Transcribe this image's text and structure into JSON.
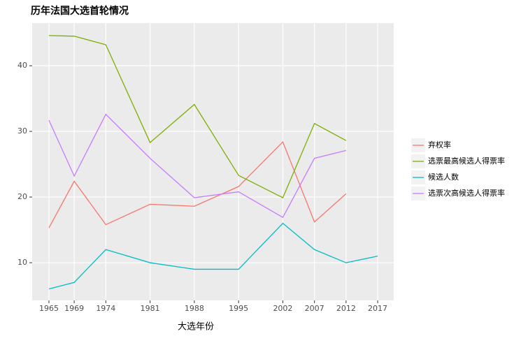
{
  "chart_data": {
    "type": "line",
    "title": "历年法国大选首轮情况",
    "x_label": "大选年份",
    "x": [
      1965,
      1969,
      1974,
      1981,
      1988,
      1995,
      2002,
      2007,
      2012,
      2017
    ],
    "series": [
      {
        "name": "弃权率",
        "color": "#F8766D",
        "values": [
          15.3,
          22.4,
          15.8,
          18.9,
          18.6,
          21.6,
          28.4,
          16.2,
          20.5,
          null
        ]
      },
      {
        "name": "选票最高候选人得票率",
        "color": "#7CAE00",
        "values": [
          44.6,
          44.5,
          43.2,
          28.3,
          34.1,
          23.3,
          19.9,
          31.2,
          28.6,
          null
        ]
      },
      {
        "name": "候选人数",
        "color": "#00BFC4",
        "values": [
          6,
          7,
          12,
          10,
          9,
          9,
          16,
          12,
          10,
          11
        ]
      },
      {
        "name": "选票次高候选人得票率",
        "color": "#C77CFF",
        "values": [
          31.7,
          23.2,
          32.6,
          25.9,
          19.9,
          20.8,
          16.9,
          25.9,
          27.1,
          null
        ]
      }
    ],
    "xlim": [
      1962.35,
      2019.54
    ],
    "xticks": [
      1965,
      1969,
      1974,
      1981,
      1988,
      1995,
      2002,
      2007,
      2012,
      2017
    ],
    "ylim": [
      4.26,
      46.5
    ],
    "yticks": [
      10,
      20,
      30,
      40
    ],
    "grid": true,
    "legend": "right"
  }
}
